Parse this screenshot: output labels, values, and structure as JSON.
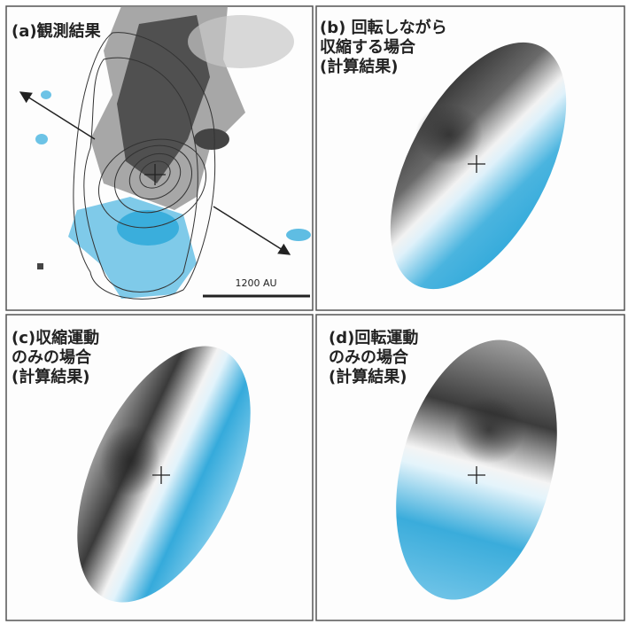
{
  "panels": [
    {
      "label_lines": [
        "(a)観測結果"
      ],
      "scale_bar": "1200 AU"
    },
    {
      "label_lines": [
        "(b) 回転しながら",
        "収縮する場合",
        "(計算結果)"
      ]
    },
    {
      "label_lines": [
        "(c)収縮運動",
        "のみの場合",
        "(計算結果)"
      ]
    },
    {
      "label_lines": [
        "(d)回転運動",
        "のみの場合",
        "(計算結果)"
      ]
    }
  ]
}
